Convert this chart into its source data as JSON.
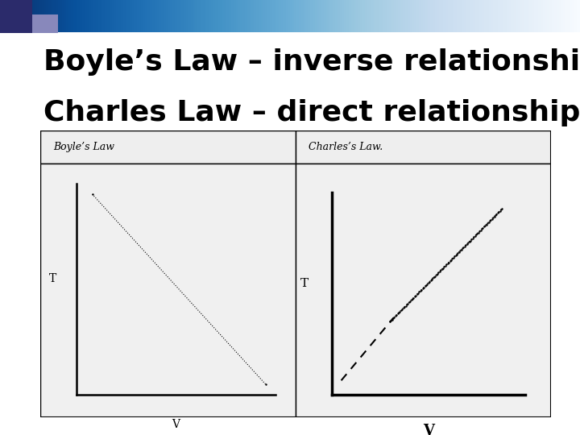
{
  "title_line1": "Boyle’s Law – inverse relationship",
  "title_line2": "Charles Law – direct relationship",
  "title_fontsize": 26,
  "title_color": "#000000",
  "background_color": "#ffffff",
  "boyles_label": "Boyle’s Law",
  "charles_label": "Charles’s Law.",
  "boyles_ylabel": "T",
  "charles_ylabel": "T",
  "boyles_xlabel": "V",
  "charles_xlabel": "V",
  "box_border_color": "#000000",
  "header_bg": "#eeeeee",
  "panel_bg": "#f0f0f0"
}
